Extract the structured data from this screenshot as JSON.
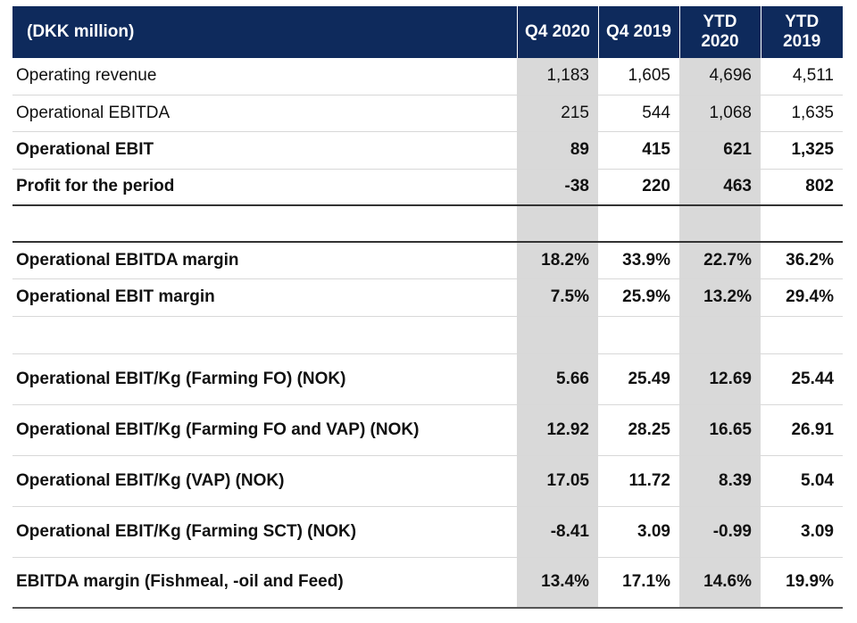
{
  "header": {
    "label": "(DKK million)",
    "columns": [
      {
        "line1": "Q4 2020",
        "line2": ""
      },
      {
        "line1": "Q4 2019",
        "line2": ""
      },
      {
        "line1": "YTD",
        "line2": "2020"
      },
      {
        "line1": "YTD",
        "line2": "2019"
      }
    ]
  },
  "rows": [
    {
      "label": "Operating revenue",
      "values": [
        "1,183",
        "1,605",
        "4,696",
        "4,511"
      ]
    },
    {
      "label": "Operational  EBITDA",
      "values": [
        "215",
        "544",
        "1,068",
        "1,635"
      ]
    },
    {
      "label": "Operational EBIT",
      "values": [
        "89",
        "415",
        "621",
        "1,325"
      ]
    },
    {
      "label": "Profit for the period",
      "values": [
        "-38",
        "220",
        "463",
        "802"
      ]
    },
    {
      "label": "",
      "values": [
        "",
        "",
        "",
        ""
      ]
    },
    {
      "label": "Operational EBITDA margin",
      "values": [
        "18.2%",
        "33.9%",
        "22.7%",
        "36.2%"
      ]
    },
    {
      "label": "Operational EBIT margin",
      "values": [
        "7.5%",
        "25.9%",
        "13.2%",
        "29.4%"
      ]
    },
    {
      "label": "",
      "values": [
        "",
        "",
        "",
        ""
      ]
    },
    {
      "label": "Operational EBIT/Kg (Farming FO) (NOK)",
      "values": [
        "5.66",
        "25.49",
        "12.69",
        "25.44"
      ]
    },
    {
      "label": "Operational EBIT/Kg (Farming FO and VAP) (NOK)",
      "values": [
        "12.92",
        "28.25",
        "16.65",
        "26.91"
      ]
    },
    {
      "label": "Operational EBIT/Kg (VAP) (NOK)",
      "values": [
        "17.05",
        "11.72",
        "8.39",
        "5.04"
      ]
    },
    {
      "label": "Operational EBIT/Kg (Farming SCT) (NOK)",
      "values": [
        "-8.41",
        "3.09",
        "-0.99",
        "3.09"
      ]
    },
    {
      "label": "EBITDA margin (Fishmeal, -oil and Feed)",
      "values": [
        "13.4%",
        "17.1%",
        "14.6%",
        "19.9%"
      ]
    }
  ],
  "colors": {
    "header_bg": "#0e2a5c",
    "header_text": "#ffffff",
    "shade": "#d9d9d9"
  }
}
